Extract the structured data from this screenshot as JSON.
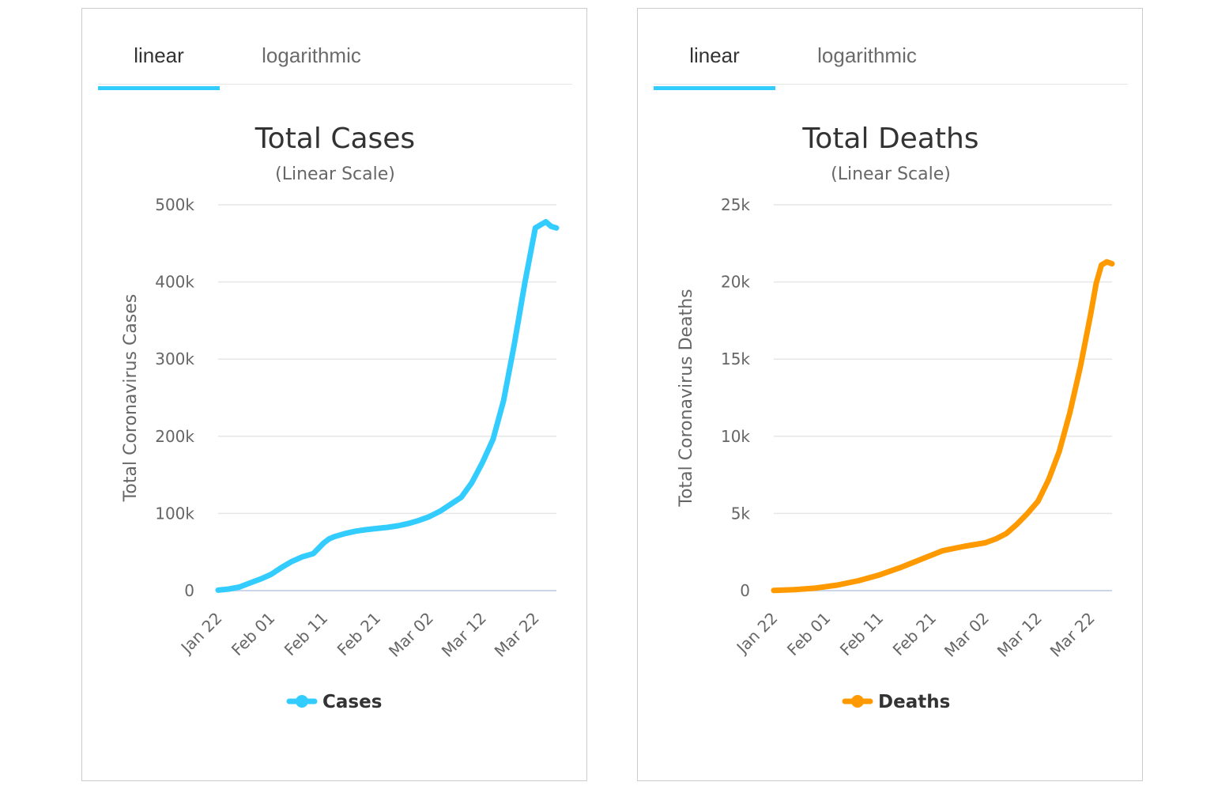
{
  "tabs": {
    "linear": "linear",
    "logarithmic": "logarithmic"
  },
  "chart_data": [
    {
      "type": "line",
      "title": "Total Cases",
      "subtitle": "(Linear Scale)",
      "xlabel": "",
      "ylabel": "Total Coronavirus Cases",
      "yticks": [
        {
          "value": 0,
          "label": "0"
        },
        {
          "value": 100000,
          "label": "100k"
        },
        {
          "value": 200000,
          "label": "200k"
        },
        {
          "value": 300000,
          "label": "300k"
        },
        {
          "value": 400000,
          "label": "400k"
        },
        {
          "value": 500000,
          "label": "500k"
        }
      ],
      "ylim": [
        0,
        500000
      ],
      "xticks": [
        {
          "day": 0,
          "label": "Jan 22"
        },
        {
          "day": 10,
          "label": "Feb 01"
        },
        {
          "day": 20,
          "label": "Feb 11"
        },
        {
          "day": 30,
          "label": "Feb 21"
        },
        {
          "day": 40,
          "label": "Mar 02"
        },
        {
          "day": 50,
          "label": "Mar 12"
        },
        {
          "day": 60,
          "label": "Mar 22"
        }
      ],
      "xlim": [
        0,
        64
      ],
      "color": "#33ccff",
      "series": [
        {
          "name": "Cases",
          "day": [
            0,
            2,
            4,
            6,
            8,
            10,
            12,
            14,
            16,
            18,
            20,
            21,
            22,
            24,
            26,
            28,
            30,
            32,
            34,
            36,
            38,
            40,
            42,
            44,
            46,
            48,
            50,
            52,
            54,
            56,
            58,
            60,
            62,
            63,
            64
          ],
          "values": [
            600,
            2000,
            4600,
            9800,
            15000,
            21000,
            30000,
            38000,
            44000,
            48000,
            62000,
            67000,
            70000,
            74000,
            77000,
            79000,
            80500,
            82000,
            84000,
            87000,
            91000,
            96000,
            103000,
            112000,
            121000,
            140000,
            166000,
            196000,
            246000,
            318000,
            398000,
            470000,
            478000,
            472000,
            470000
          ]
        }
      ]
    },
    {
      "type": "line",
      "title": "Total Deaths",
      "subtitle": "(Linear Scale)",
      "xlabel": "",
      "ylabel": "Total Coronavirus Deaths",
      "yticks": [
        {
          "value": 0,
          "label": "0"
        },
        {
          "value": 5000,
          "label": "5k"
        },
        {
          "value": 10000,
          "label": "10k"
        },
        {
          "value": 15000,
          "label": "15k"
        },
        {
          "value": 20000,
          "label": "20k"
        },
        {
          "value": 25000,
          "label": "25k"
        }
      ],
      "ylim": [
        0,
        25000
      ],
      "xticks": [
        {
          "day": 0,
          "label": "Jan 22"
        },
        {
          "day": 10,
          "label": "Feb 01"
        },
        {
          "day": 20,
          "label": "Feb 11"
        },
        {
          "day": 30,
          "label": "Feb 21"
        },
        {
          "day": 40,
          "label": "Mar 02"
        },
        {
          "day": 50,
          "label": "Mar 12"
        },
        {
          "day": 60,
          "label": "Mar 22"
        }
      ],
      "xlim": [
        0,
        64
      ],
      "color": "#ff9900",
      "series": [
        {
          "name": "Deaths",
          "day": [
            0,
            4,
            8,
            12,
            16,
            20,
            24,
            28,
            32,
            36,
            40,
            42,
            44,
            46,
            48,
            50,
            52,
            54,
            56,
            58,
            60,
            61,
            62,
            63,
            64
          ],
          "values": [
            17,
            60,
            170,
            360,
            640,
            1020,
            1500,
            2050,
            2590,
            2870,
            3100,
            3350,
            3700,
            4300,
            5000,
            5800,
            7200,
            9000,
            11500,
            14500,
            18000,
            19900,
            21100,
            21300,
            21180
          ]
        }
      ]
    }
  ]
}
